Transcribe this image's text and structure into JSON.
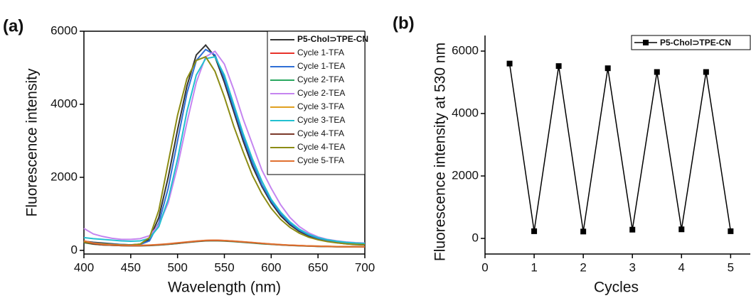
{
  "chart_data": [
    {
      "type": "line",
      "panel_label": "(a)",
      "x_label": "Wavelength (nm)",
      "y_label": "Fluorescence intensity",
      "xlim": [
        400,
        700
      ],
      "ylim": [
        -100,
        6000
      ],
      "xticks": [
        400,
        450,
        500,
        550,
        600,
        650,
        700
      ],
      "yticks": [
        0,
        2000,
        4000,
        6000
      ],
      "x": [
        400,
        410,
        420,
        430,
        440,
        450,
        460,
        470,
        480,
        490,
        500,
        510,
        520,
        530,
        540,
        550,
        560,
        570,
        580,
        590,
        600,
        610,
        620,
        630,
        640,
        650,
        660,
        670,
        680,
        690,
        700
      ],
      "series": [
        {
          "name": "P5-Chol⊃TPE-CN",
          "color": "#333333",
          "values": [
            250,
            220,
            200,
            180,
            160,
            150,
            170,
            300,
            900,
            2000,
            3300,
            4500,
            5350,
            5620,
            5300,
            4600,
            3800,
            3000,
            2300,
            1750,
            1300,
            950,
            700,
            520,
            400,
            310,
            250,
            210,
            180,
            160,
            150
          ]
        },
        {
          "name": "Cycle 1-TFA",
          "color": "#e8322a",
          "values": [
            230,
            180,
            150,
            140,
            130,
            130,
            130,
            140,
            150,
            170,
            190,
            220,
            250,
            270,
            280,
            270,
            250,
            230,
            210,
            190,
            170,
            150,
            140,
            130,
            120,
            110,
            110,
            100,
            100,
            100,
            100
          ]
        },
        {
          "name": "Cycle 1-TEA",
          "color": "#2f6fd6",
          "values": [
            240,
            210,
            190,
            170,
            160,
            150,
            160,
            260,
            750,
            1700,
            3000,
            4300,
            5200,
            5500,
            5350,
            4700,
            3900,
            3100,
            2400,
            1800,
            1350,
            1000,
            740,
            550,
            420,
            330,
            270,
            230,
            200,
            180,
            170
          ]
        },
        {
          "name": "Cycle 2-TFA",
          "color": "#2aa860",
          "values": [
            210,
            170,
            150,
            140,
            130,
            125,
            125,
            130,
            145,
            165,
            190,
            215,
            240,
            260,
            265,
            255,
            240,
            220,
            200,
            180,
            165,
            150,
            135,
            125,
            115,
            110,
            105,
            100,
            100,
            100,
            95
          ]
        },
        {
          "name": "Cycle 2-TEA",
          "color": "#c585f0",
          "values": [
            600,
            450,
            380,
            330,
            300,
            300,
            320,
            400,
            700,
            1300,
            2300,
            3500,
            4600,
            5300,
            5450,
            5100,
            4400,
            3600,
            2900,
            2200,
            1700,
            1250,
            900,
            650,
            480,
            370,
            300,
            260,
            230,
            210,
            200
          ]
        },
        {
          "name": "Cycle 3-TFA",
          "color": "#e0a020",
          "values": [
            250,
            190,
            160,
            145,
            135,
            130,
            130,
            140,
            155,
            175,
            200,
            225,
            250,
            270,
            275,
            265,
            250,
            230,
            210,
            190,
            170,
            155,
            140,
            130,
            120,
            115,
            110,
            105,
            100,
            100,
            100
          ]
        },
        {
          "name": "Cycle 3-TEA",
          "color": "#22c0d0",
          "values": [
            350,
            320,
            300,
            280,
            260,
            250,
            260,
            330,
            650,
            1400,
            2500,
            3800,
            4800,
            5250,
            5300,
            4800,
            4000,
            3200,
            2500,
            1900,
            1400,
            1050,
            780,
            580,
            440,
            350,
            290,
            250,
            220,
            200,
            190
          ]
        },
        {
          "name": "Cycle 4-TFA",
          "color": "#7b3a2a",
          "values": [
            220,
            175,
            150,
            140,
            130,
            125,
            125,
            135,
            150,
            170,
            195,
            220,
            245,
            265,
            270,
            262,
            248,
            228,
            208,
            188,
            170,
            152,
            138,
            128,
            118,
            112,
            106,
            102,
            100,
            98,
            96
          ]
        },
        {
          "name": "Cycle 4-TEA",
          "color": "#8c8c14",
          "values": [
            230,
            200,
            180,
            160,
            150,
            145,
            170,
            350,
            1100,
            2400,
            3700,
            4700,
            5200,
            5300,
            4900,
            4200,
            3400,
            2700,
            2050,
            1550,
            1150,
            850,
            630,
            470,
            360,
            290,
            240,
            205,
            180,
            165,
            155
          ]
        },
        {
          "name": "Cycle 5-TFA",
          "color": "#e07030",
          "values": [
            260,
            200,
            165,
            150,
            140,
            135,
            135,
            145,
            160,
            180,
            205,
            230,
            255,
            275,
            280,
            270,
            255,
            235,
            215,
            195,
            175,
            158,
            142,
            132,
            122,
            115,
            110,
            105,
            102,
            100,
            98
          ]
        }
      ]
    },
    {
      "type": "line",
      "panel_label": "(b)",
      "x_label": "Cycles",
      "y_label": "Fluorescence intensity at 530 nm",
      "xlim": [
        0,
        5.4
      ],
      "ylim": [
        -500,
        6500
      ],
      "xticks": [
        0,
        1,
        2,
        3,
        4,
        5
      ],
      "yticks": [
        0,
        2000,
        4000,
        6000
      ],
      "x": [
        0.5,
        1,
        1.5,
        2,
        2.5,
        3,
        3.5,
        4,
        4.5,
        5
      ],
      "series": [
        {
          "name": "P5-Chol⊃TPE-CN",
          "color": "#000000",
          "values": [
            5600,
            230,
            5520,
            220,
            5450,
            280,
            5330,
            290,
            5330,
            230
          ]
        }
      ]
    }
  ]
}
